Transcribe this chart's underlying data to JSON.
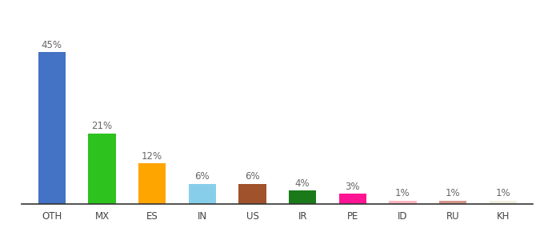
{
  "categories": [
    "OTH",
    "MX",
    "ES",
    "IN",
    "US",
    "IR",
    "PE",
    "ID",
    "RU",
    "KH"
  ],
  "values": [
    45,
    21,
    12,
    6,
    6,
    4,
    3,
    1,
    1,
    1
  ],
  "labels": [
    "45%",
    "21%",
    "12%",
    "6%",
    "6%",
    "4%",
    "3%",
    "1%",
    "1%",
    "1%"
  ],
  "bar_colors": [
    "#4472c4",
    "#2dc21e",
    "#ffa500",
    "#87ceeb",
    "#a0522d",
    "#1a7a1a",
    "#ff1493",
    "#ffb6c1",
    "#d4958a",
    "#f0eedc"
  ],
  "ylim": [
    0,
    52
  ],
  "background_color": "#ffffff",
  "label_fontsize": 8.5,
  "tick_fontsize": 8.5,
  "bar_width": 0.55
}
